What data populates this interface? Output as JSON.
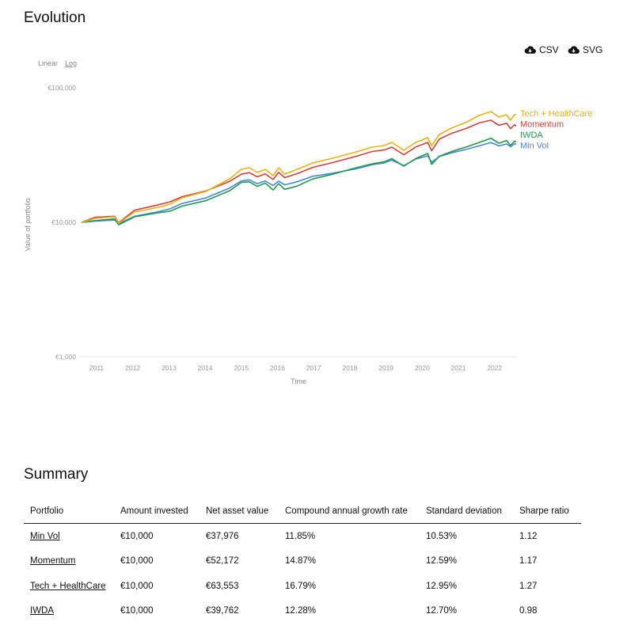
{
  "evolution": {
    "title": "Evolution",
    "download_csv": "CSV",
    "download_svg": "SVG",
    "download_icon": "cloud-download-icon",
    "scale_linear": "Linear",
    "scale_log": "Log",
    "selected_scale": "Log"
  },
  "chart_data": {
    "type": "line",
    "xlabel": "Time",
    "ylabel": "Value of portfolio",
    "yscale": "log",
    "ylim": [
      1000,
      100000
    ],
    "xlim": [
      2010.58,
      2022.6
    ],
    "yticks": [
      {
        "value": 100000,
        "label": "€100,000"
      },
      {
        "value": 10000,
        "label": "€10,000"
      },
      {
        "value": 1000,
        "label": "€1,000"
      }
    ],
    "xticks": [
      "2011",
      "2012",
      "2013",
      "2014",
      "2015",
      "2016",
      "2017",
      "2018",
      "2019",
      "2020",
      "2021",
      "2022"
    ],
    "grid": false,
    "legend_placement": "line-end labels, right",
    "x": [
      2010.58,
      2010.96,
      2011.5,
      2011.61,
      2012.05,
      2012.71,
      2013.03,
      2013.36,
      2014.02,
      2014.68,
      2015.0,
      2015.22,
      2015.44,
      2015.66,
      2015.88,
      2016.03,
      2016.2,
      2016.54,
      2016.97,
      2017.52,
      2018.18,
      2018.61,
      2018.94,
      2019.16,
      2019.49,
      2019.82,
      2020.15,
      2020.26,
      2020.47,
      2020.8,
      2021.24,
      2021.57,
      2021.9,
      2022.12,
      2022.33,
      2022.44,
      2022.55,
      2022.6
    ],
    "series": [
      {
        "name": "Tech + HealthCare",
        "color": "#e6b412",
        "values": [
          10000,
          10700,
          10990,
          9860,
          11930,
          12940,
          13660,
          15220,
          16960,
          21060,
          24780,
          25470,
          23470,
          24780,
          22240,
          25470,
          22850,
          24780,
          27630,
          29960,
          33390,
          36220,
          37200,
          39300,
          34280,
          39300,
          42600,
          37200,
          44970,
          50120,
          55850,
          62230,
          66630,
          60560,
          63100,
          57400,
          63100,
          63553
        ]
      },
      {
        "name": "Momentum",
        "color": "#d1423c",
        "values": [
          10000,
          10900,
          11100,
          9950,
          12300,
          13500,
          14200,
          15500,
          17100,
          20200,
          22800,
          23400,
          21800,
          22900,
          20800,
          23500,
          21500,
          23000,
          25600,
          27800,
          31000,
          33600,
          34500,
          36200,
          31800,
          36300,
          39300,
          34000,
          41500,
          45800,
          50200,
          54800,
          57500,
          52600,
          54500,
          49800,
          53000,
          52172
        ]
      },
      {
        "name": "IWDA",
        "color": "#1f9a4e",
        "values": [
          10000,
          10300,
          10600,
          9600,
          11000,
          11800,
          12100,
          13200,
          14500,
          17200,
          19800,
          20000,
          18500,
          19600,
          17400,
          19400,
          17600,
          18600,
          21000,
          22800,
          25500,
          27200,
          28100,
          29800,
          26200,
          29800,
          32500,
          27000,
          31000,
          33500,
          36500,
          39200,
          42200,
          38700,
          40600,
          37200,
          40200,
          39762
        ]
      },
      {
        "name": "Min Vol",
        "color": "#4a85e0",
        "values": [
          10000,
          10200,
          10400,
          9800,
          11100,
          12000,
          12600,
          13800,
          15200,
          18000,
          20300,
          20700,
          19400,
          20300,
          18800,
          20200,
          19000,
          20000,
          22000,
          23200,
          25000,
          26800,
          27600,
          29000,
          26400,
          29500,
          31200,
          28000,
          30800,
          32800,
          35000,
          37000,
          39200,
          37000,
          38200,
          36500,
          38400,
          37976
        ]
      }
    ]
  },
  "summary": {
    "title": "Summary",
    "columns": [
      "Portfolio",
      "Amount invested",
      "Net asset value",
      "Compound annual growth rate",
      "Standard deviation",
      "Sharpe ratio"
    ],
    "rows": [
      [
        "Min Vol",
        "€10,000",
        "€37,976",
        "11.85%",
        "10.53%",
        "1.12"
      ],
      [
        "Momentum",
        "€10,000",
        "€52,172",
        "14.87%",
        "12.59%",
        "1.17"
      ],
      [
        "Tech + HealthCare",
        "€10,000",
        "€63,553",
        "16.79%",
        "12.95%",
        "1.27"
      ],
      [
        "IWDA",
        "€10,000",
        "€39,762",
        "12.28%",
        "12.70%",
        "0.98"
      ]
    ]
  }
}
